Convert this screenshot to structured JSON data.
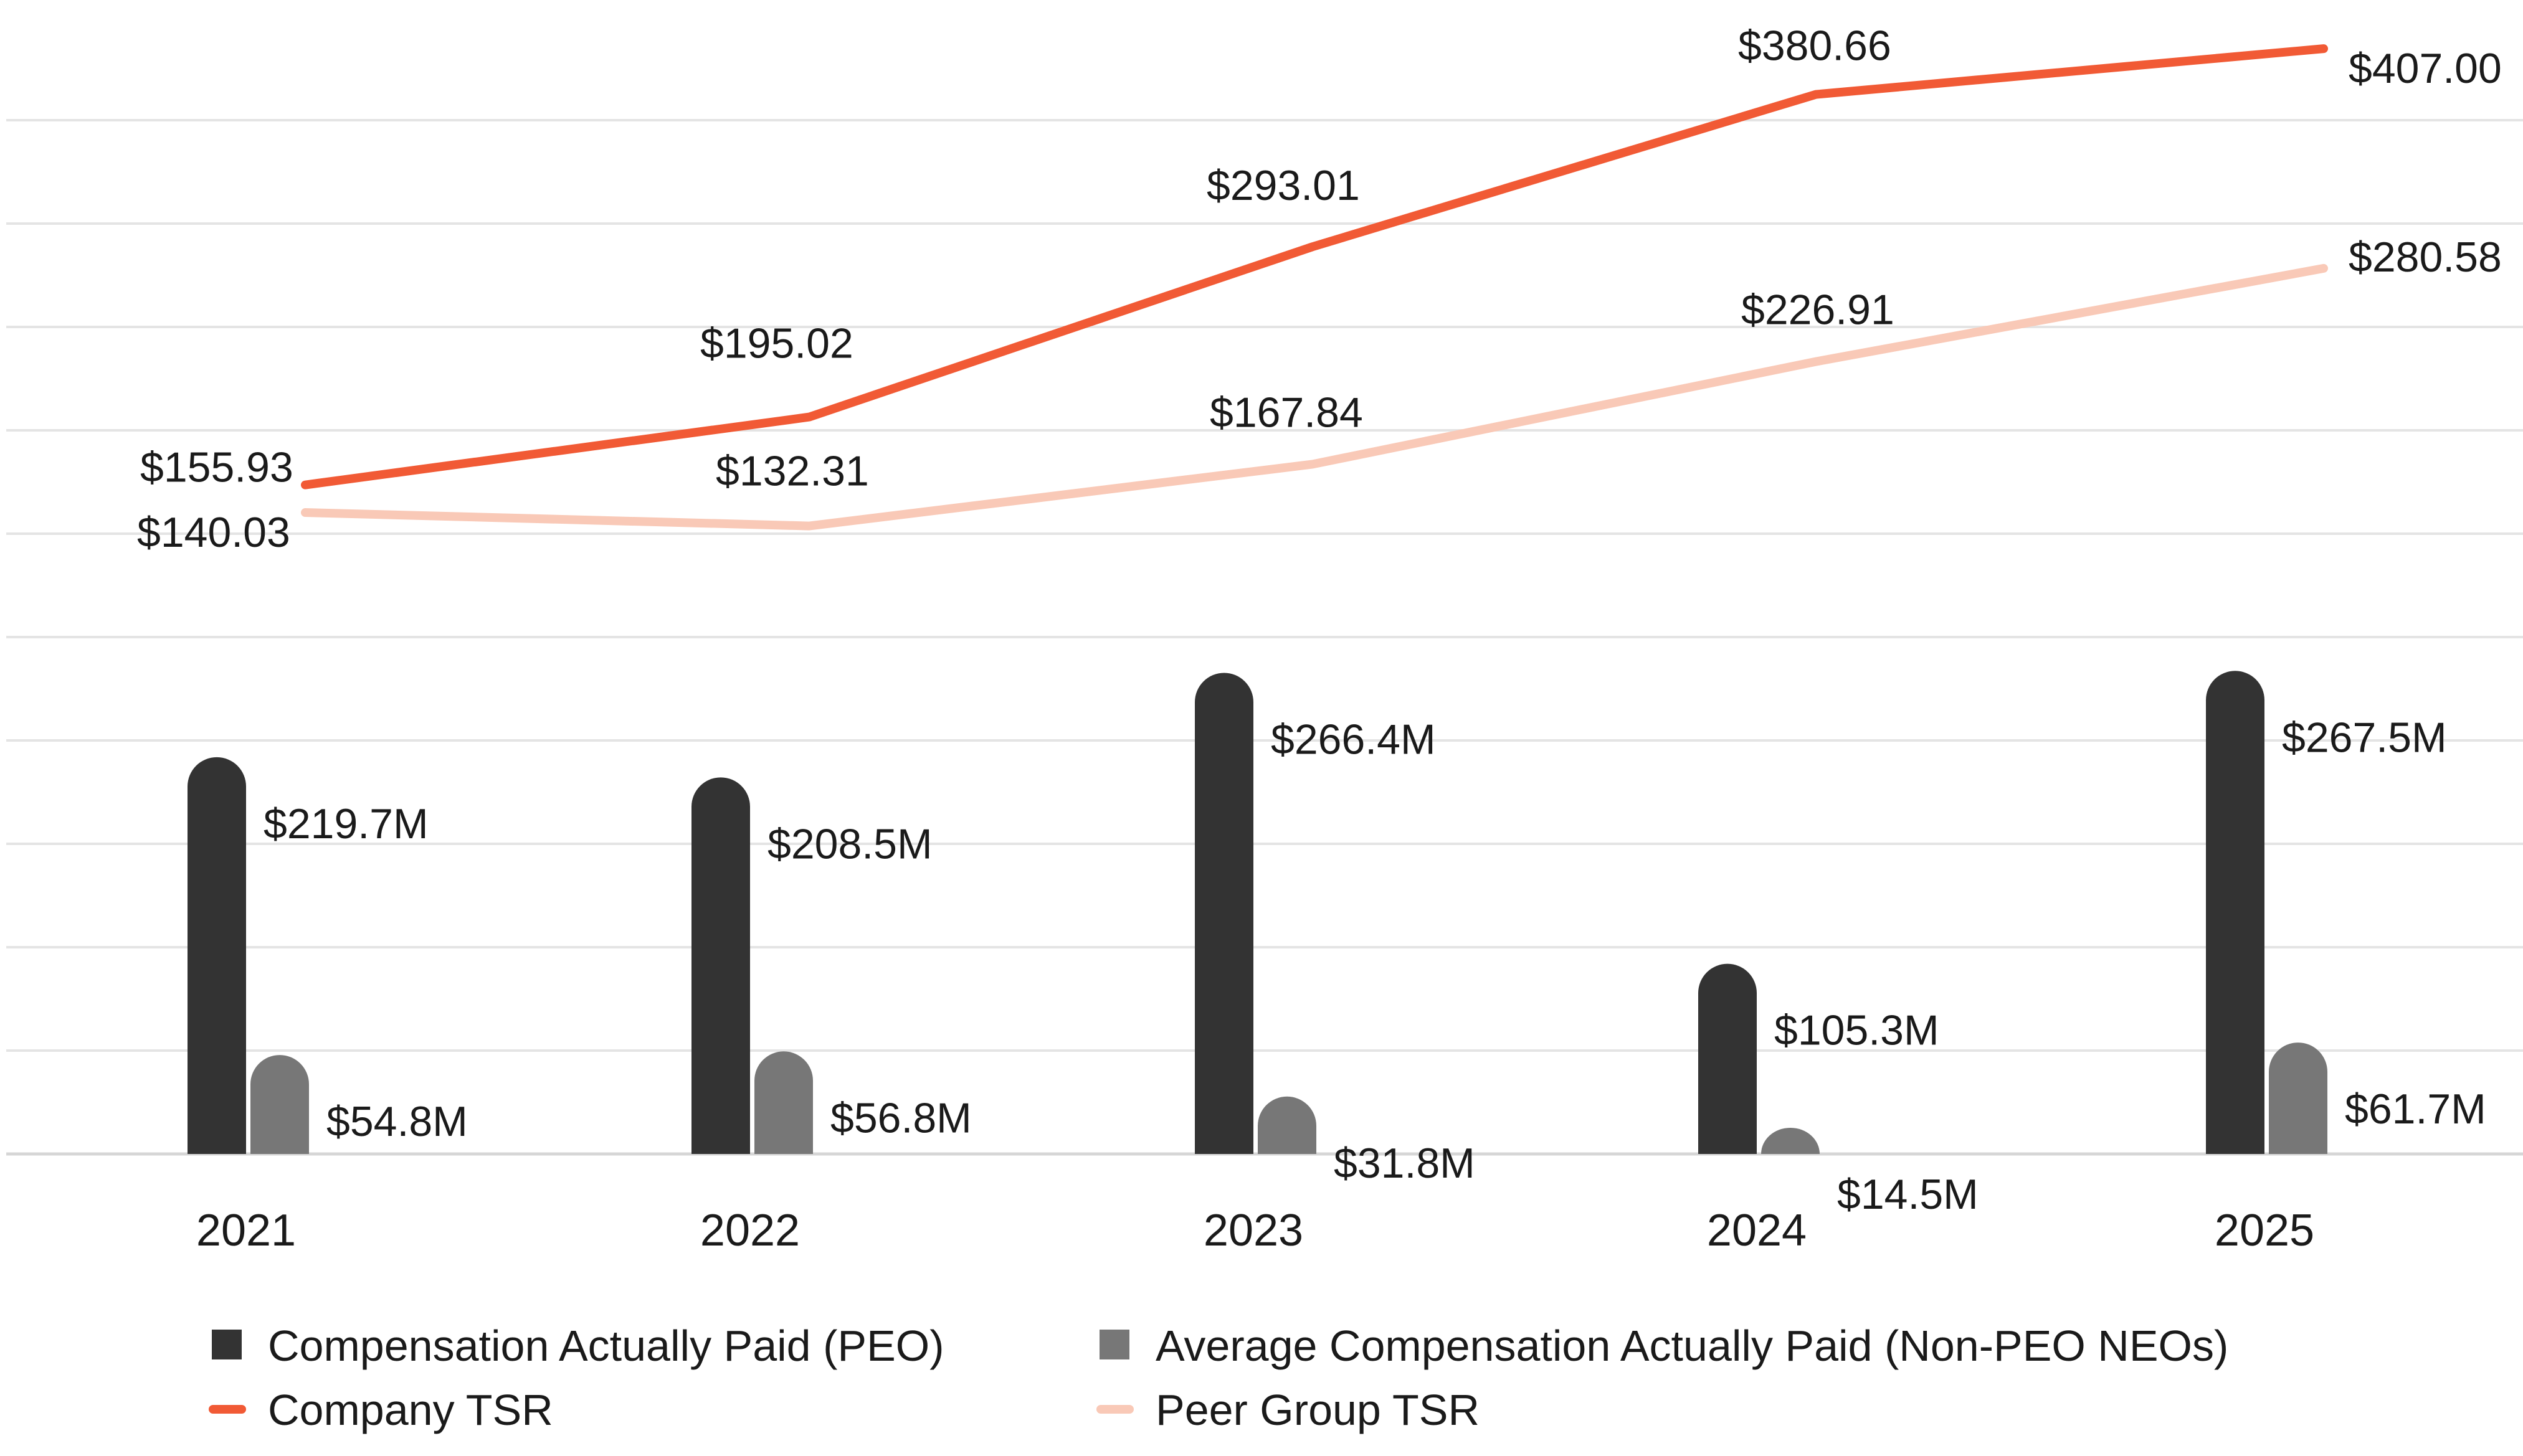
{
  "chart_data": {
    "type": "bar",
    "categories": [
      "2021",
      "2022",
      "2023",
      "2024",
      "2025"
    ],
    "series": [
      {
        "name": "Compensation Actually Paid (PEO)",
        "kind": "bar",
        "axis": "bars",
        "color": "#333333",
        "values": [
          219.7,
          208.5,
          266.4,
          105.3,
          267.5
        ],
        "labels": [
          "$219.7M",
          "$208.5M",
          "$266.4M",
          "$105.3M",
          "$267.5M"
        ]
      },
      {
        "name": "Average Compensation Actually Paid (Non-PEO NEOs)",
        "kind": "bar",
        "axis": "bars",
        "color": "#777777",
        "values": [
          54.8,
          56.8,
          31.8,
          14.5,
          61.7
        ],
        "labels": [
          "$54.8M",
          "$56.8M",
          "$31.8M",
          "$14.5M",
          "$61.7M"
        ]
      },
      {
        "name": "Company TSR",
        "kind": "line",
        "axis": "tsr",
        "color": "#f15a35",
        "values": [
          155.93,
          195.02,
          293.01,
          380.66,
          407.0
        ],
        "labels": [
          "$155.93",
          "$195.02",
          "$293.01",
          "$380.66",
          "$407.00"
        ]
      },
      {
        "name": "Peer Group TSR",
        "kind": "line",
        "axis": "tsr",
        "color": "#f9c9b7",
        "values": [
          140.03,
          132.31,
          167.84,
          226.91,
          280.58
        ],
        "labels": [
          "$140.03",
          "$132.31",
          "$167.84",
          "$226.91",
          "$280.58"
        ]
      }
    ],
    "bar_axis_range": [
      0,
      500
    ],
    "tsr_axis_range": [
      25,
      435
    ],
    "grid": true,
    "legend_position": "bottom-left",
    "title": "",
    "xlabel": "",
    "ylabel": ""
  }
}
